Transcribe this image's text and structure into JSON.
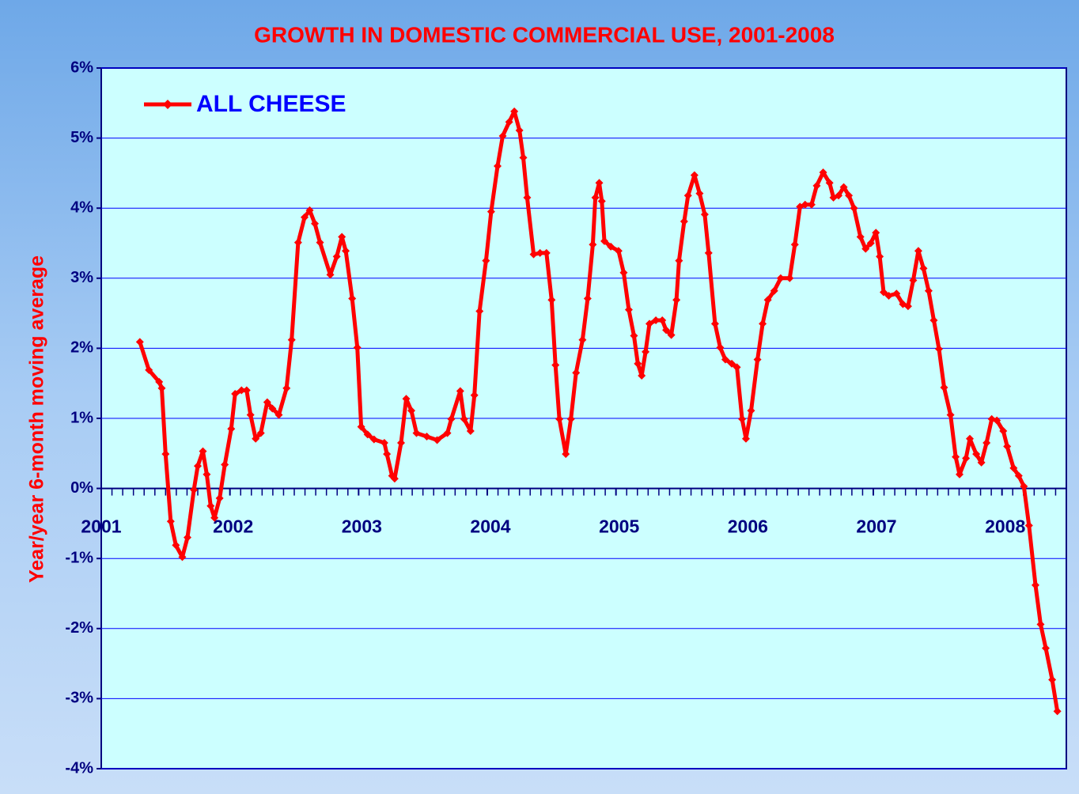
{
  "chart_data": {
    "type": "line",
    "title": "GROWTH IN DOMESTIC COMMERCIAL USE, 2001-2008",
    "y_label": "Year/year 6-month moving average",
    "legend": "upper left",
    "grid": true,
    "xlim": [
      2001,
      2008.5
    ],
    "xticks": [
      2001,
      2002,
      2003,
      2004,
      2005,
      2006,
      2007,
      2008
    ],
    "ylim": [
      -4,
      6
    ],
    "yticks": [
      {
        "value": -4,
        "label": "-4%"
      },
      {
        "value": -3,
        "label": "-3%"
      },
      {
        "value": -2,
        "label": "-2%"
      },
      {
        "value": -1,
        "label": "-1%"
      },
      {
        "value": 0,
        "label": "0%"
      },
      {
        "value": 1,
        "label": "1%"
      },
      {
        "value": 2,
        "label": "2%"
      },
      {
        "value": 3,
        "label": "3%"
      },
      {
        "value": 4,
        "label": "4%"
      },
      {
        "value": 5,
        "label": "5%"
      },
      {
        "value": 6,
        "label": "6%"
      }
    ],
    "x": [
      2001.3,
      2001.37,
      2001.45,
      2001.47,
      2001.5,
      2001.54,
      2001.58,
      2001.63,
      2001.67,
      2001.72,
      2001.75,
      2001.79,
      2001.82,
      2001.85,
      2001.88,
      2001.92,
      2001.96,
      2002.01,
      2002.04,
      2002.09,
      2002.13,
      2002.16,
      2002.2,
      2002.24,
      2002.29,
      2002.33,
      2002.38,
      2002.44,
      2002.48,
      2002.53,
      2002.58,
      2002.62,
      2002.66,
      2002.7,
      2002.78,
      2002.83,
      2002.87,
      2002.9,
      2002.95,
      2002.99,
      2003.02,
      2003.07,
      2003.12,
      2003.2,
      2003.22,
      2003.26,
      2003.28,
      2003.33,
      2003.37,
      2003.41,
      2003.45,
      2003.53,
      2003.61,
      2003.69,
      2003.72,
      2003.79,
      2003.82,
      2003.87,
      2003.9,
      2003.94,
      2003.99,
      2004.03,
      2004.08,
      2004.12,
      2004.17,
      2004.21,
      2004.25,
      2004.28,
      2004.31,
      2004.36,
      2004.41,
      2004.46,
      2004.5,
      2004.53,
      2004.56,
      2004.61,
      2004.65,
      2004.69,
      2004.74,
      2004.78,
      2004.82,
      2004.84,
      2004.87,
      2004.89,
      2004.91,
      2004.96,
      2005.02,
      2005.06,
      2005.1,
      2005.14,
      2005.17,
      2005.2,
      2005.23,
      2005.26,
      2005.31,
      2005.36,
      2005.39,
      2005.43,
      2005.47,
      2005.49,
      2005.53,
      2005.56,
      2005.61,
      2005.65,
      2005.69,
      2005.72,
      2005.77,
      2005.81,
      2005.85,
      2005.9,
      2005.94,
      2005.98,
      2006.01,
      2006.05,
      2006.1,
      2006.14,
      2006.18,
      2006.23,
      2006.28,
      2006.35,
      2006.39,
      2006.43,
      2006.47,
      2006.52,
      2006.56,
      2006.61,
      2006.66,
      2006.69,
      2006.73,
      2006.77,
      2006.81,
      2006.85,
      2006.9,
      2006.94,
      2006.98,
      2007.02,
      2007.05,
      2007.08,
      2007.12,
      2007.18,
      2007.23,
      2007.27,
      2007.31,
      2007.35,
      2007.39,
      2007.43,
      2007.47,
      2007.51,
      2007.55,
      2007.6,
      2007.64,
      2007.67,
      2007.72,
      2007.75,
      2007.8,
      2007.84,
      2007.88,
      2007.92,
      2007.96,
      2008.01,
      2008.04,
      2008.09,
      2008.13,
      2008.17,
      2008.21,
      2008.26,
      2008.3,
      2008.34,
      2008.39,
      2008.43
    ],
    "series": [
      {
        "name": "ALL CHEESE",
        "color": "#ff0000",
        "values": [
          2.09,
          1.69,
          1.52,
          1.43,
          0.49,
          -0.47,
          -0.81,
          -0.98,
          -0.7,
          -0.02,
          0.32,
          0.53,
          0.2,
          -0.25,
          -0.42,
          -0.14,
          0.34,
          0.85,
          1.35,
          1.4,
          1.4,
          1.05,
          0.71,
          0.79,
          1.23,
          1.14,
          1.05,
          1.43,
          2.12,
          3.51,
          3.87,
          3.97,
          3.78,
          3.51,
          3.05,
          3.31,
          3.59,
          3.39,
          2.71,
          2.01,
          0.88,
          0.77,
          0.7,
          0.65,
          0.49,
          0.18,
          0.14,
          0.65,
          1.28,
          1.11,
          0.79,
          0.74,
          0.69,
          0.79,
          0.99,
          1.39,
          0.99,
          0.82,
          1.33,
          2.53,
          3.25,
          3.95,
          4.6,
          5.03,
          5.23,
          5.38,
          5.11,
          4.72,
          4.15,
          3.34,
          3.36,
          3.36,
          2.69,
          1.76,
          0.99,
          0.49,
          0.99,
          1.65,
          2.12,
          2.71,
          3.48,
          4.15,
          4.36,
          4.1,
          3.53,
          3.45,
          3.39,
          3.08,
          2.55,
          2.18,
          1.78,
          1.61,
          1.95,
          2.35,
          2.4,
          2.4,
          2.26,
          2.19,
          2.69,
          3.25,
          3.81,
          4.18,
          4.47,
          4.21,
          3.91,
          3.36,
          2.35,
          2.01,
          1.84,
          1.78,
          1.73,
          0.99,
          0.71,
          1.11,
          1.84,
          2.35,
          2.69,
          2.82,
          3.0,
          3.0,
          3.48,
          4.02,
          4.05,
          4.05,
          4.32,
          4.51,
          4.36,
          4.15,
          4.18,
          4.3,
          4.18,
          4.0,
          3.59,
          3.42,
          3.5,
          3.65,
          3.31,
          2.8,
          2.75,
          2.78,
          2.63,
          2.6,
          2.97,
          3.39,
          3.14,
          2.82,
          2.4,
          1.99,
          1.44,
          1.05,
          0.45,
          0.2,
          0.43,
          0.71,
          0.49,
          0.37,
          0.65,
          0.99,
          0.97,
          0.82,
          0.6,
          0.29,
          0.18,
          0.03,
          -0.53,
          -1.38,
          -1.94,
          -2.28,
          -2.73,
          -3.18
        ]
      }
    ]
  }
}
